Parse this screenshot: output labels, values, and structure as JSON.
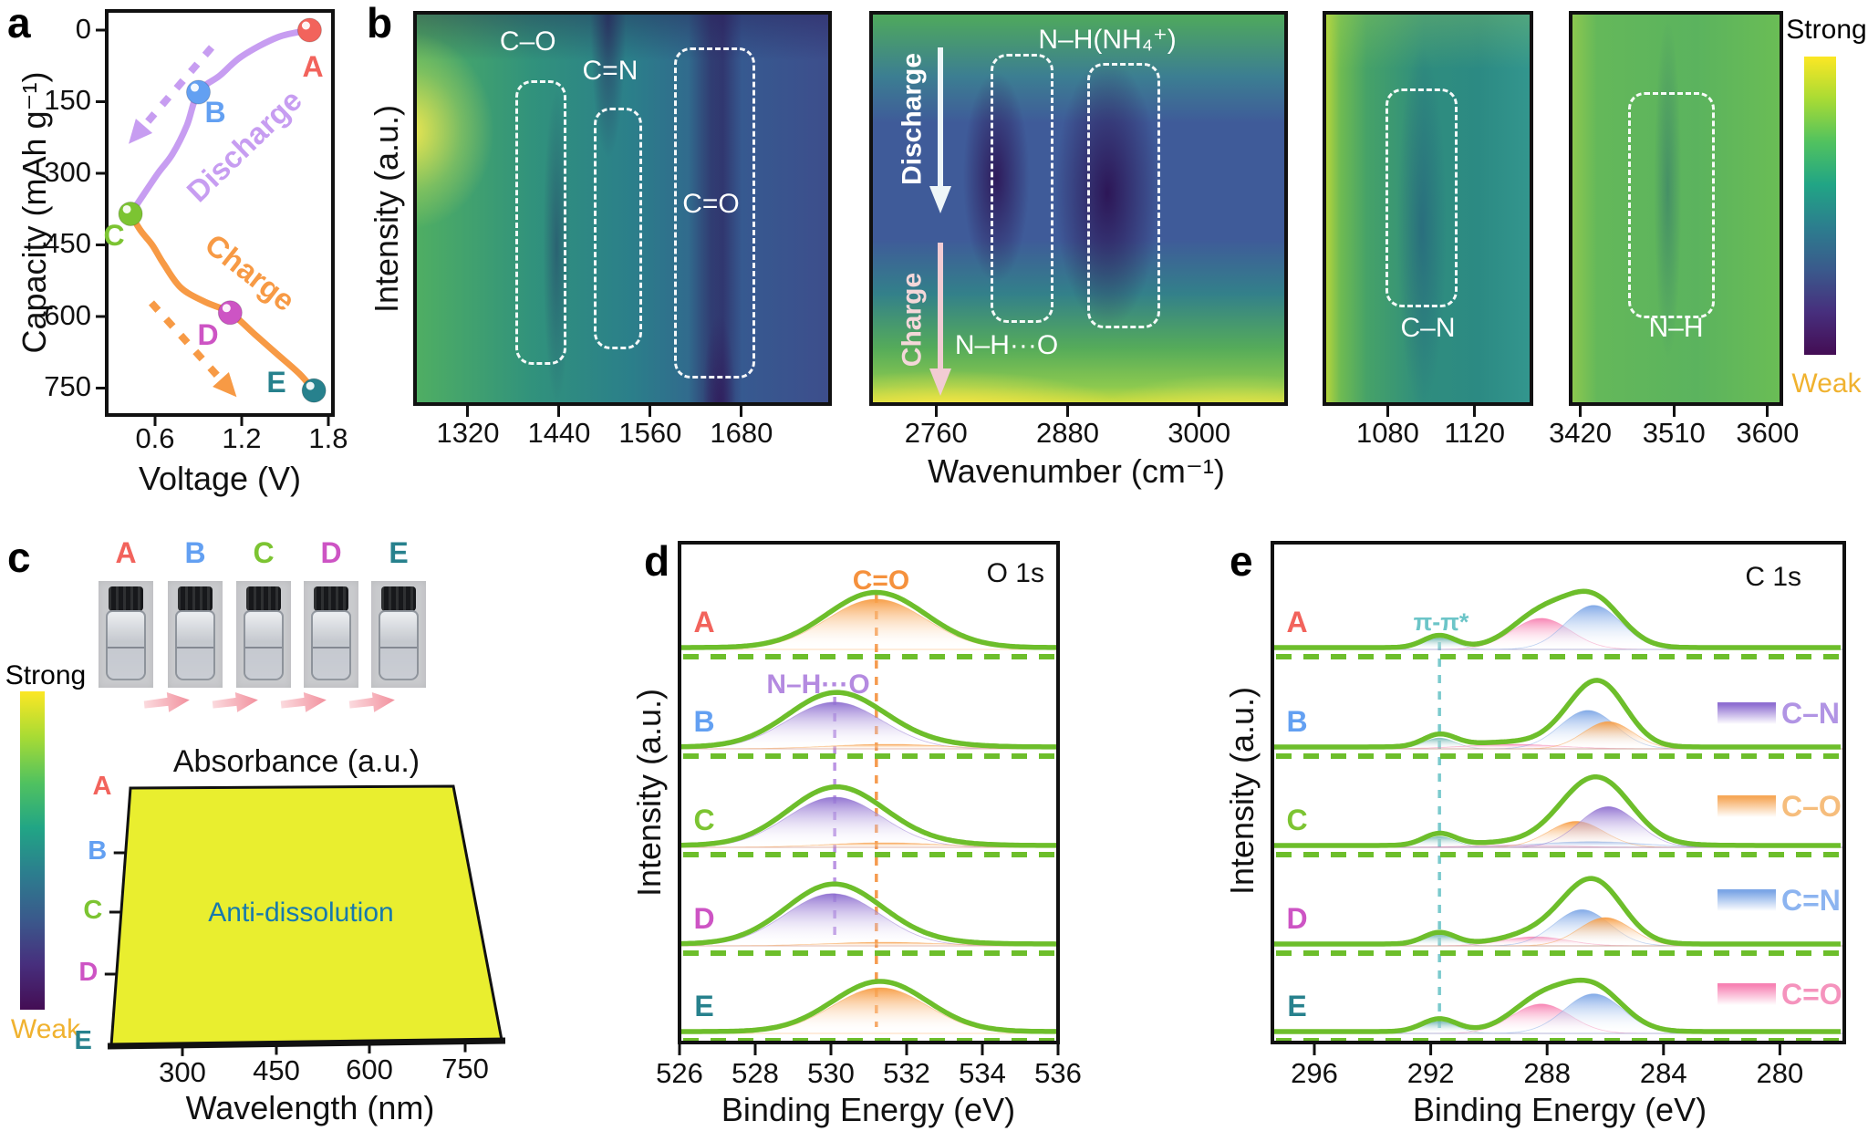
{
  "figure": {
    "background": "#ffffff"
  },
  "letters": [
    {
      "id": "A",
      "color": "#f2635c"
    },
    {
      "id": "B",
      "color": "#63a0f2"
    },
    {
      "id": "C",
      "color": "#7cc432"
    },
    {
      "id": "D",
      "color": "#cd54c4"
    },
    {
      "id": "E",
      "color": "#27818d"
    }
  ],
  "colorbar": {
    "strong": "Strong",
    "weak": "Weak",
    "weak_color": "#f0b22f",
    "stops": [
      "#440d54",
      "#472f7d",
      "#3a5a8c",
      "#2c7e8e",
      "#21a585",
      "#51c25f",
      "#a8db34",
      "#fce724"
    ]
  },
  "panels": {
    "a": {
      "label": "a",
      "ylabel": "Capacity (mAh g⁻¹)",
      "xlabel": "Voltage (V)",
      "yticks": [
        0,
        150,
        300,
        450,
        600,
        750
      ],
      "xticks": [
        0.6,
        1.2,
        1.8
      ],
      "discharge_label": "Discharge",
      "charge_label": "Charge",
      "discharge_color": "#c79df1",
      "charge_color": "#f79a45"
    },
    "b": {
      "label": "b",
      "ylabel": "Intensity (a.u.)",
      "xlabel": "Wavenumber (cm⁻¹)",
      "strong": "Strong",
      "weak": "Weak",
      "maps": [
        {
          "ticks": [
            1320,
            1440,
            1560,
            1680
          ],
          "range": [
            1248,
            1799
          ],
          "annotations": [
            "C–O",
            "C=N",
            "C=O"
          ]
        },
        {
          "ticks": [
            2760,
            2880,
            3000
          ],
          "range": [
            2699,
            3081
          ],
          "annotations": [
            "N–H(NH₄⁺)",
            "N–H···O"
          ],
          "discharge": "Discharge",
          "charge": "Charge"
        },
        {
          "ticks": [
            1080,
            1120
          ],
          "range": [
            1050,
            1147
          ],
          "annotations": [
            "C–N"
          ]
        },
        {
          "ticks": [
            3420,
            3510,
            3600
          ],
          "range": [
            3409,
            3615
          ],
          "annotations": [
            "N–H"
          ]
        }
      ]
    },
    "c": {
      "label": "c",
      "strong": "Strong",
      "weak": "Weak",
      "vial_letters": [
        "A",
        "B",
        "C",
        "D",
        "E"
      ],
      "title": "Absorbance (a.u.)",
      "series_letters": [
        "A",
        "B",
        "C",
        "D",
        "E"
      ],
      "annotation": "Anti-dissolution",
      "annotation_color": "#1779ad",
      "xticks": [
        300,
        450,
        600,
        750
      ],
      "xlabel": "Wavelength (nm)",
      "area_color": "#e9ee2f"
    },
    "d": {
      "label": "d",
      "corner": "O 1s",
      "ylabel": "Intensity (a.u.)",
      "xlabel": "Binding Energy (eV)",
      "xticks": [
        526,
        528,
        530,
        532,
        534,
        536
      ],
      "ann_co": {
        "text": "C=O",
        "ev": 531.2,
        "color": "#f5913d"
      },
      "ann_nho": {
        "text": "N–H···O",
        "ev": 530.1,
        "color": "#b48ae0"
      }
    },
    "e": {
      "label": "e",
      "corner": "C 1s",
      "ylabel": "Intensity (a.u.)",
      "xlabel": "Binding Energy (eV)",
      "xticks": [
        296,
        292,
        288,
        284,
        280
      ],
      "pipi": "π-π*",
      "pipi_ev": 291.7,
      "pipi_color": "#6cc5c8",
      "legend": [
        {
          "label": "C–N",
          "fill": "#8f6fd2",
          "text_color": "#b194e4"
        },
        {
          "label": "C–O",
          "fill": "#f6a859",
          "text_color": "#f6bd7c"
        },
        {
          "label": "C=N",
          "fill": "#7ca6e6",
          "text_color": "#8cb4f0"
        },
        {
          "label": "C=O",
          "fill": "#f783b4",
          "text_color": "#f593bd"
        }
      ]
    }
  },
  "chart_data": [
    {
      "id": "a",
      "type": "line",
      "xlabel": "Voltage (V)",
      "ylabel": "Capacity (mAh g⁻¹)",
      "xlim": [
        0.27,
        1.83
      ],
      "ylim": [
        0,
        750
      ],
      "y_inverted": true,
      "series": [
        {
          "name": "Discharge",
          "color": "#c79df1",
          "points": [
            [
              1.67,
              0
            ],
            [
              1.45,
              15
            ],
            [
              1.2,
              55
            ],
            [
              1.05,
              95
            ],
            [
              0.9,
              130
            ],
            [
              0.82,
              200
            ],
            [
              0.72,
              260
            ],
            [
              0.62,
              300
            ],
            [
              0.52,
              345
            ],
            [
              0.43,
              385
            ]
          ]
        },
        {
          "name": "Charge",
          "color": "#f79a45",
          "points": [
            [
              0.43,
              385
            ],
            [
              0.5,
              420
            ],
            [
              0.58,
              450
            ],
            [
              0.66,
              490
            ],
            [
              0.78,
              540
            ],
            [
              0.95,
              570
            ],
            [
              1.12,
              592
            ],
            [
              1.3,
              640
            ],
            [
              1.45,
              680
            ],
            [
              1.6,
              720
            ],
            [
              1.7,
              755
            ]
          ]
        }
      ],
      "markers": [
        {
          "letter": "A",
          "voltage": 1.67,
          "capacity": 0
        },
        {
          "letter": "B",
          "voltage": 0.9,
          "capacity": 130
        },
        {
          "letter": "C",
          "voltage": 0.43,
          "capacity": 385
        },
        {
          "letter": "D",
          "voltage": 1.12,
          "capacity": 592
        },
        {
          "letter": "E",
          "voltage": 1.7,
          "capacity": 755
        }
      ]
    },
    {
      "id": "b",
      "type": "heatmap",
      "xlabel": "Wavenumber (cm⁻¹)",
      "ylabel": "Intensity (a.u.)",
      "colorbar": {
        "top": "Strong",
        "bottom": "Weak",
        "colormap": "viridis-reversed"
      },
      "segments": [
        {
          "xticks": [
            1320,
            1440,
            1560,
            1680
          ],
          "xrange": [
            1248,
            1799
          ],
          "bands": [
            {
              "label": "C–O",
              "center": 1395
            },
            {
              "label": "C=N",
              "center": 1540
            },
            {
              "label": "C=O",
              "center": 1685
            }
          ]
        },
        {
          "xticks": [
            2760,
            2880,
            3000
          ],
          "xrange": [
            2699,
            3081
          ],
          "bands": [
            {
              "label": "N–H···O",
              "center": 2805
            },
            {
              "label": "N–H(NH₄⁺)",
              "center": 2905
            }
          ],
          "arrows": [
            "Discharge",
            "Charge"
          ]
        },
        {
          "xticks": [
            1080,
            1120
          ],
          "xrange": [
            1050,
            1147
          ],
          "bands": [
            {
              "label": "C–N",
              "center": 1100
            }
          ]
        },
        {
          "xticks": [
            3420,
            3510,
            3600
          ],
          "xrange": [
            3409,
            3615
          ],
          "bands": [
            {
              "label": "N–H",
              "center": 3500
            }
          ]
        }
      ]
    },
    {
      "id": "c",
      "type": "area",
      "title": "Absorbance (a.u.)",
      "xlabel": "Wavelength (nm)",
      "xticks": [
        300,
        450,
        600,
        750
      ],
      "series_labels": [
        "A",
        "B",
        "C",
        "D",
        "E"
      ],
      "annotation": "Anti-dissolution",
      "note": "flat featureless absorbance for all five states A–E"
    },
    {
      "id": "d",
      "type": "line",
      "corner": "O 1s",
      "xlabel": "Binding Energy (eV)",
      "xlim": [
        526,
        536
      ],
      "guides": [
        {
          "label": "C=O",
          "ev": 531.2
        },
        {
          "label": "N–H···O",
          "ev": 530.1
        }
      ],
      "rows": [
        {
          "label": "A",
          "peaks": [
            {
              "assign": "C=O",
              "color": "orange",
              "center_eV": 531.2,
              "sigma_eV": 1.3,
              "rel_h": 1.0
            }
          ]
        },
        {
          "label": "B",
          "peaks": [
            {
              "assign": "N–H···O",
              "color": "purple",
              "center_eV": 530.1,
              "sigma_eV": 1.25,
              "rel_h": 0.93
            },
            {
              "assign": "C=O",
              "color": "orange",
              "center_eV": 531.5,
              "sigma_eV": 1.5,
              "rel_h": 0.09
            }
          ]
        },
        {
          "label": "C",
          "peaks": [
            {
              "assign": "N–H···O",
              "color": "purple",
              "center_eV": 530.1,
              "sigma_eV": 1.25,
              "rel_h": 1.0
            },
            {
              "assign": "C=O",
              "color": "orange",
              "center_eV": 531.4,
              "sigma_eV": 1.5,
              "rel_h": 0.09
            }
          ]
        },
        {
          "label": "D",
          "peaks": [
            {
              "assign": "N–H···O",
              "color": "purple",
              "center_eV": 530.05,
              "sigma_eV": 1.25,
              "rel_h": 1.04
            },
            {
              "assign": "C=O",
              "color": "orange",
              "center_eV": 531.4,
              "sigma_eV": 1.5,
              "rel_h": 0.07
            }
          ]
        },
        {
          "label": "E",
          "peaks": [
            {
              "assign": "C=O",
              "color": "orange",
              "center_eV": 531.3,
              "sigma_eV": 1.25,
              "rel_h": 0.91
            }
          ]
        }
      ]
    },
    {
      "id": "e",
      "type": "line",
      "corner": "C 1s",
      "xlabel": "Binding Energy (eV)",
      "xlim": [
        298,
        278
      ],
      "x_reversed": true,
      "guides": [
        {
          "label": "π-π*",
          "ev": 291.7
        }
      ],
      "rows": [
        {
          "label": "A",
          "peaks": [
            {
              "assign": "π-π*",
              "color": "teal",
              "center_eV": 291.7,
              "sigma_eV": 0.55,
              "rel_h": 0.2
            },
            {
              "assign": "C=O",
              "color": "pink",
              "center_eV": 288.2,
              "sigma_eV": 1.0,
              "rel_h": 0.55
            },
            {
              "assign": "C=N",
              "color": "blue",
              "center_eV": 286.4,
              "sigma_eV": 0.95,
              "rel_h": 0.78
            }
          ]
        },
        {
          "label": "B",
          "peaks": [
            {
              "assign": "π-π*",
              "color": "teal",
              "center_eV": 291.7,
              "sigma_eV": 0.55,
              "rel_h": 0.19
            },
            {
              "assign": "C=O",
              "color": "pink",
              "center_eV": 289.2,
              "sigma_eV": 1.6,
              "rel_h": 0.08
            },
            {
              "assign": "C=N",
              "color": "blue",
              "center_eV": 286.6,
              "sigma_eV": 0.95,
              "rel_h": 0.68
            },
            {
              "assign": "C–O",
              "color": "orange",
              "center_eV": 285.9,
              "sigma_eV": 0.85,
              "rel_h": 0.48
            }
          ]
        },
        {
          "label": "C",
          "peaks": [
            {
              "assign": "π-π*",
              "color": "teal",
              "center_eV": 291.7,
              "sigma_eV": 0.55,
              "rel_h": 0.19
            },
            {
              "assign": "C=O",
              "color": "pink",
              "center_eV": 289.0,
              "sigma_eV": 1.6,
              "rel_h": 0.04
            },
            {
              "assign": "C=N",
              "color": "blue",
              "center_eV": 286.5,
              "sigma_eV": 1.8,
              "rel_h": 0.1
            },
            {
              "assign": "C–O",
              "color": "orange",
              "center_eV": 287.0,
              "sigma_eV": 0.95,
              "rel_h": 0.46
            },
            {
              "assign": "C–N",
              "color": "purple",
              "center_eV": 285.9,
              "sigma_eV": 1.0,
              "rel_h": 0.72
            }
          ]
        },
        {
          "label": "D",
          "peaks": [
            {
              "assign": "π-π*",
              "color": "teal",
              "center_eV": 291.7,
              "sigma_eV": 0.55,
              "rel_h": 0.19
            },
            {
              "assign": "C=O",
              "color": "pink",
              "center_eV": 288.4,
              "sigma_eV": 1.1,
              "rel_h": 0.16
            },
            {
              "assign": "C=N",
              "color": "blue",
              "center_eV": 286.8,
              "sigma_eV": 0.95,
              "rel_h": 0.64
            },
            {
              "assign": "C–O",
              "color": "orange",
              "center_eV": 286.0,
              "sigma_eV": 0.9,
              "rel_h": 0.5
            }
          ]
        },
        {
          "label": "E",
          "peaks": [
            {
              "assign": "π-π*",
              "color": "teal",
              "center_eV": 291.7,
              "sigma_eV": 0.6,
              "rel_h": 0.21
            },
            {
              "assign": "C=O",
              "color": "pink",
              "center_eV": 288.2,
              "sigma_eV": 1.0,
              "rel_h": 0.52
            },
            {
              "assign": "C=N",
              "color": "blue",
              "center_eV": 286.4,
              "sigma_eV": 1.0,
              "rel_h": 0.7
            }
          ]
        }
      ]
    }
  ]
}
